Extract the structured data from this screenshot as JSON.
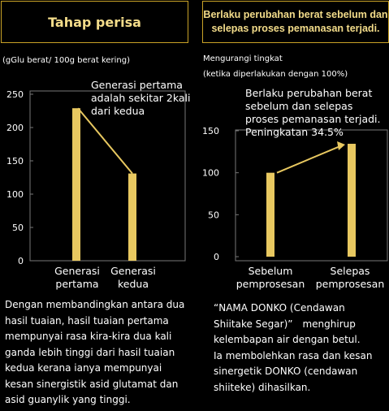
{
  "left_panel": {
    "title": "Tahap perisa",
    "unit": "(gGlu berat/ 100g berat kering)",
    "annotation": "Generasi pertama\nadalah sekitar 2kali\ndari kedua",
    "description": "Dengan membandingkan antara dua\nhasil tuaian, hasil tuaian pertama\nmempunyai rasa kira-kira dua kali\nganda lebih tinggi dari hasil tuaian\nkedua kerana ianya mempunyai\nkesan sinergistik asid glutamat dan\nasid guanylik yang tinggi."
  },
  "right_panel": {
    "title": "Berlaku perubahan berat sebelum dan\nselepas proses pemanasan terjadi.",
    "unit_line1": "Mengurangi tingkat",
    "unit_line2": "(ketika diperlakukan dengan 100%)",
    "annotation": "Berlaku perubahan berat\nsebelum dan selepas\nproses pemanasan terjadi.\nPeningkatan 34.5%",
    "description": "“NAMA DONKO (Cendawan\nShiitake Segar)”　menghirup\nkelembapan air dengan betul.\nIa membolehkan rasa dan kesan\nsinergetik DONKO (cendawan\nshiiteke) dihasilkan."
  },
  "colors": {
    "bar": "#e8c860",
    "title_text": "#f3dc8a",
    "frame": "#c9a227"
  },
  "chart_data": [
    {
      "type": "bar",
      "title": "Tahap perisa",
      "ylabel": "(gGlu berat/ 100g berat kering)",
      "categories": [
        "Generasi\npertama",
        "Generasi\nkedua"
      ],
      "values": [
        229,
        131
      ],
      "ylim": [
        0,
        250
      ],
      "yticks": [
        0,
        50,
        100,
        150,
        200,
        250
      ],
      "grid": false
    },
    {
      "type": "bar",
      "title": "Berlaku perubahan berat sebelum dan selepas proses pemanasan terjadi.",
      "ylabel": "Mengurangi tingkat (ketika diperlakukan dengan 100%)",
      "categories": [
        "Sebelum\npemprosesan",
        "Selepas\npemprosesan"
      ],
      "values": [
        100,
        134.5
      ],
      "ylim": [
        0,
        150
      ],
      "yticks": [
        0,
        50,
        100,
        150
      ],
      "grid": false
    }
  ]
}
